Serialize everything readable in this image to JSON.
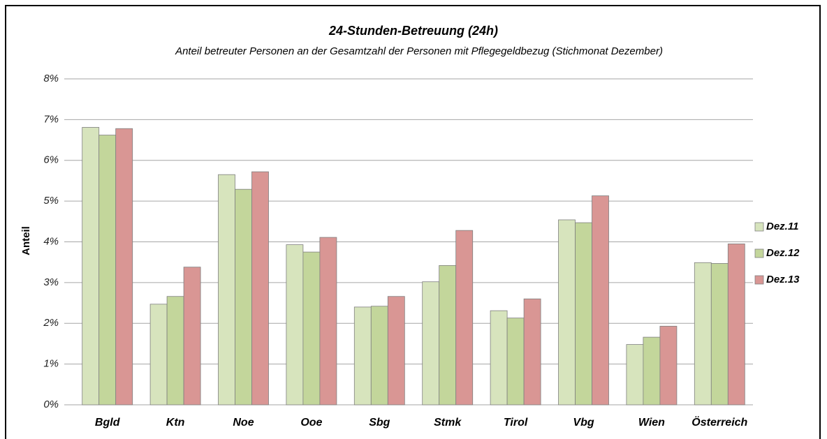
{
  "chart_data": {
    "type": "bar",
    "title": "24-Stunden-Betreuung (24h)",
    "subtitle": "Anteil betreuter Personen an der Gesamtzahl der Personen mit Pflegegeldbezug (Stichmonat Dezember)",
    "y_label": "Anteil",
    "categories": [
      "Bgld",
      "Ktn",
      "Noe",
      "Ooe",
      "Sbg",
      "Stmk",
      "Tirol",
      "Vbg",
      "Wien",
      "Österreich"
    ],
    "series": [
      {
        "name": "Dez.11",
        "color": "#d7e4bd",
        "values": [
          6.81,
          2.47,
          5.65,
          3.93,
          2.4,
          3.02,
          2.31,
          4.54,
          1.48,
          3.49
        ]
      },
      {
        "name": "Dez.12",
        "color": "#c3d69b",
        "values": [
          6.62,
          2.66,
          5.29,
          3.75,
          2.42,
          3.42,
          2.13,
          4.47,
          1.66,
          3.47
        ]
      },
      {
        "name": "Dez.13",
        "color": "#d99694",
        "values": [
          6.78,
          3.38,
          5.72,
          4.11,
          2.66,
          4.28,
          2.6,
          5.13,
          1.93,
          3.95
        ]
      }
    ],
    "ylim": [
      0,
      8
    ],
    "yticks": [
      {
        "value": 0,
        "label": "0%"
      },
      {
        "value": 1,
        "label": "1%"
      },
      {
        "value": 2,
        "label": "2%"
      },
      {
        "value": 3,
        "label": "3%"
      },
      {
        "value": 4,
        "label": "4%"
      },
      {
        "value": 5,
        "label": "5%"
      },
      {
        "value": 6,
        "label": "6%"
      },
      {
        "value": 7,
        "label": "7%"
      },
      {
        "value": 8,
        "label": "8%"
      }
    ],
    "grid": true,
    "legend": "right"
  }
}
